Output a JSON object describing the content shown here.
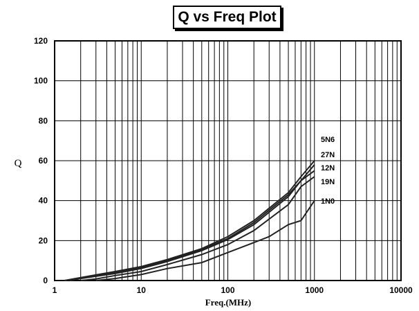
{
  "chart_data": {
    "type": "line",
    "title": "Q vs Freq Plot",
    "xlabel": "Freq.(MHz)",
    "ylabel": "Q",
    "x_scale": "log",
    "xlim": [
      1,
      10000
    ],
    "ylim": [
      0,
      120
    ],
    "x_ticks": [
      "1",
      "10",
      "100",
      "1000",
      "10000"
    ],
    "y_ticks": [
      "0",
      "20",
      "40",
      "60",
      "80",
      "100",
      "120"
    ],
    "grid": true,
    "legend": "labels at line ends (right)",
    "series": [
      {
        "name": "5N6",
        "x": [
          1.3,
          2,
          5,
          10,
          20,
          50,
          100,
          200,
          500,
          700,
          1000
        ],
        "y": [
          0,
          1.5,
          4.5,
          7,
          10.5,
          16,
          22,
          30,
          44,
          52,
          60
        ]
      },
      {
        "name": "27N",
        "x": [
          1.3,
          2,
          5,
          10,
          20,
          50,
          100,
          200,
          500,
          700,
          1000
        ],
        "y": [
          0,
          1.2,
          4,
          6.5,
          10,
          15.5,
          21,
          29,
          43,
          50,
          58
        ]
      },
      {
        "name": "12N",
        "x": [
          1.5,
          2,
          5,
          10,
          20,
          50,
          100,
          200,
          500,
          700,
          1000
        ],
        "y": [
          0,
          1,
          3.5,
          6,
          9.5,
          15,
          20.5,
          28,
          42,
          50,
          55
        ]
      },
      {
        "name": "19N",
        "x": [
          2,
          3,
          5,
          10,
          20,
          50,
          100,
          200,
          500,
          700,
          1000
        ],
        "y": [
          0,
          0.8,
          2.5,
          4.5,
          8,
          13,
          18,
          25,
          38,
          47,
          52
        ]
      },
      {
        "name": "1N0",
        "x": [
          3,
          5,
          10,
          20,
          50,
          100,
          200,
          300,
          500,
          700,
          1000
        ],
        "y": [
          0,
          1,
          3,
          6,
          9,
          14,
          19,
          22,
          28,
          30,
          40
        ]
      }
    ]
  }
}
